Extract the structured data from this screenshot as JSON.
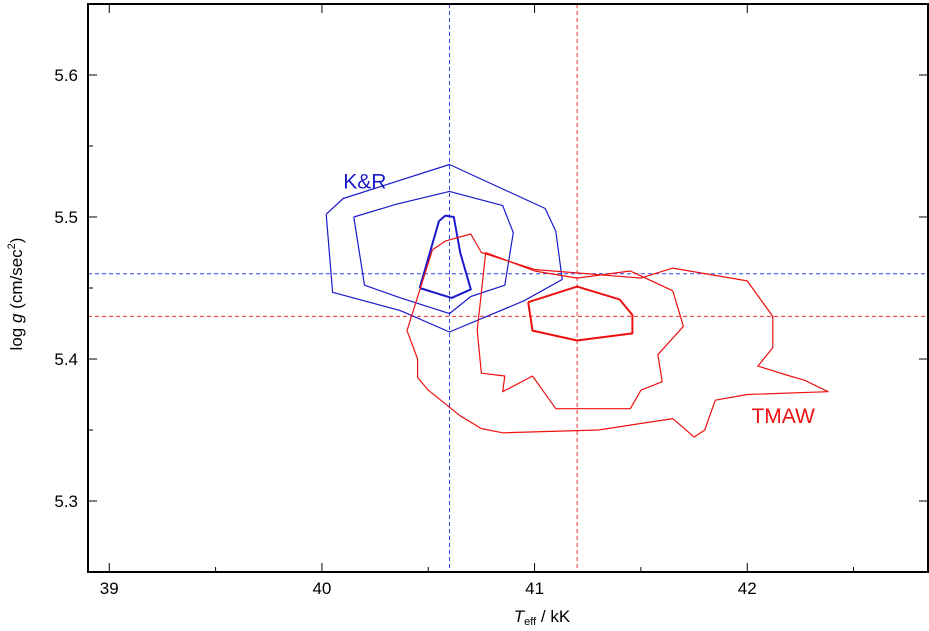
{
  "chart_data": {
    "type": "line",
    "title": "",
    "xlabel": {
      "symbol": "T",
      "subscript": "eff",
      "unit": " / kK"
    },
    "ylabel": {
      "prefix": "log ",
      "symbol": "g",
      "unit": " (cm/sec",
      "superscript": "2",
      "suffix": ")"
    },
    "xlim": [
      38.9,
      42.85
    ],
    "ylim": [
      5.25,
      5.65
    ],
    "xticks": [
      39,
      40,
      41,
      42
    ],
    "xtick_labels": [
      "39",
      "40",
      "41",
      "42"
    ],
    "yticks": [
      5.3,
      5.4,
      5.5,
      5.6
    ],
    "ytick_labels": [
      "5.3",
      "5.4",
      "5.5",
      "5.6"
    ],
    "grid": false,
    "reference_lines": [
      {
        "series": "K&R",
        "x": 40.6,
        "y": 5.46,
        "color": "#3344ee"
      },
      {
        "series": "TMAW",
        "x": 41.2,
        "y": 5.43,
        "color": "#ee3333"
      }
    ],
    "series": [
      {
        "name": "K&R",
        "color": "#1a1acc",
        "label_pos": [
          40.1,
          5.525
        ],
        "contours": [
          {
            "width": 2,
            "points": [
              [
                40.46,
                5.45
              ],
              [
                40.55,
                5.497
              ],
              [
                40.58,
                5.501
              ],
              [
                40.62,
                5.5
              ],
              [
                40.65,
                5.475
              ],
              [
                40.7,
                5.449
              ],
              [
                40.61,
                5.443
              ],
              [
                40.46,
                5.45
              ]
            ]
          },
          {
            "width": 1.2,
            "points": [
              [
                40.15,
                5.5
              ],
              [
                40.35,
                5.509
              ],
              [
                40.6,
                5.518
              ],
              [
                40.85,
                5.508
              ],
              [
                40.9,
                5.489
              ],
              [
                40.86,
                5.452
              ],
              [
                40.7,
                5.444
              ],
              [
                40.6,
                5.432
              ],
              [
                40.37,
                5.443
              ],
              [
                40.2,
                5.452
              ],
              [
                40.15,
                5.5
              ]
            ]
          },
          {
            "width": 1.2,
            "points": [
              [
                40.02,
                5.502
              ],
              [
                40.1,
                5.513
              ],
              [
                40.6,
                5.537
              ],
              [
                41.05,
                5.506
              ],
              [
                41.1,
                5.49
              ],
              [
                41.13,
                5.456
              ],
              [
                40.95,
                5.441
              ],
              [
                40.6,
                5.419
              ],
              [
                40.37,
                5.434
              ],
              [
                40.05,
                5.447
              ],
              [
                40.02,
                5.502
              ]
            ]
          }
        ]
      },
      {
        "name": "TMAW",
        "color": "#ee1111",
        "label_pos": [
          42.02,
          5.36
        ],
        "contours": [
          {
            "width": 2,
            "points": [
              [
                40.97,
                5.44
              ],
              [
                41.2,
                5.451
              ],
              [
                41.4,
                5.442
              ],
              [
                41.46,
                5.431
              ],
              [
                41.46,
                5.418
              ],
              [
                41.2,
                5.413
              ],
              [
                40.99,
                5.42
              ],
              [
                40.97,
                5.44
              ]
            ]
          },
          {
            "width": 1.2,
            "points": [
              [
                40.77,
                5.475
              ],
              [
                41.0,
                5.462
              ],
              [
                41.2,
                5.457
              ],
              [
                41.45,
                5.462
              ],
              [
                41.65,
                5.448
              ],
              [
                41.7,
                5.423
              ],
              [
                41.58,
                5.403
              ],
              [
                41.6,
                5.384
              ],
              [
                41.5,
                5.378
              ],
              [
                41.45,
                5.365
              ],
              [
                41.1,
                5.365
              ],
              [
                40.99,
                5.388
              ],
              [
                40.85,
                5.377
              ],
              [
                40.86,
                5.388
              ],
              [
                40.75,
                5.39
              ],
              [
                40.73,
                5.42
              ],
              [
                40.77,
                5.475
              ]
            ]
          },
          {
            "width": 1.2,
            "points": [
              [
                40.52,
                5.477
              ],
              [
                40.58,
                5.483
              ],
              [
                40.7,
                5.488
              ],
              [
                40.75,
                5.475
              ],
              [
                41.0,
                5.463
              ],
              [
                41.5,
                5.457
              ],
              [
                41.65,
                5.464
              ],
              [
                42.0,
                5.455
              ],
              [
                42.12,
                5.43
              ],
              [
                42.12,
                5.408
              ],
              [
                42.05,
                5.395
              ],
              [
                42.2,
                5.388
              ],
              [
                42.27,
                5.385
              ],
              [
                42.38,
                5.377
              ],
              [
                42.0,
                5.375
              ],
              [
                41.85,
                5.371
              ],
              [
                41.8,
                5.35
              ],
              [
                41.75,
                5.345
              ],
              [
                41.65,
                5.358
              ],
              [
                41.3,
                5.35
              ],
              [
                40.85,
                5.348
              ],
              [
                40.75,
                5.351
              ],
              [
                40.65,
                5.36
              ],
              [
                40.5,
                5.378
              ],
              [
                40.45,
                5.387
              ],
              [
                40.45,
                5.4
              ],
              [
                40.4,
                5.42
              ],
              [
                40.52,
                5.477
              ]
            ]
          }
        ]
      }
    ]
  }
}
